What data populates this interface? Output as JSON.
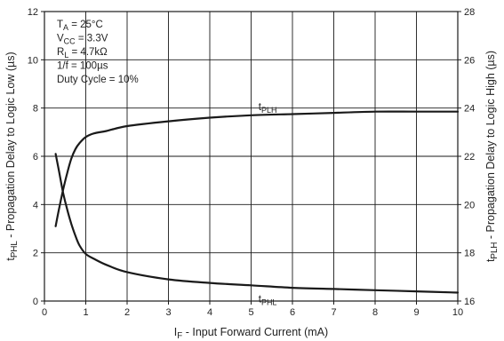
{
  "chart_data": {
    "type": "line",
    "xlabel": {
      "main": "I",
      "sub": "F",
      "rest": " - Input Forward Current (mA)"
    },
    "ylabel_left": {
      "main": "t",
      "sub": "PHL",
      "rest": " - Propagation Delay to Logic Low (µs)"
    },
    "ylabel_right": {
      "main": "t",
      "sub": "PLH",
      "rest": " - Propagation Delay to Logic High (µs)"
    },
    "xlim": [
      0,
      10
    ],
    "ylim_left": [
      0,
      12
    ],
    "ylim_right": [
      16,
      28
    ],
    "x_ticks": [
      "0",
      "1",
      "2",
      "3",
      "4",
      "5",
      "6",
      "7",
      "8",
      "9",
      "10"
    ],
    "y_ticks_left": [
      "0",
      "2",
      "4",
      "6",
      "8",
      "10",
      "12"
    ],
    "y_ticks_right": [
      "16",
      "18",
      "20",
      "22",
      "24",
      "26",
      "28"
    ],
    "grid": true,
    "conditions": [
      {
        "main": "T",
        "sub": "A",
        "rest": " = 25°C"
      },
      {
        "main": "V",
        "sub": "CC",
        "rest": " = 3.3V"
      },
      {
        "main": "R",
        "sub": "L",
        "rest": " = 4.7kΩ"
      },
      {
        "main": "1/f = 100µs",
        "sub": "",
        "rest": ""
      },
      {
        "main": "Duty Cycle = 10%",
        "sub": "",
        "rest": ""
      }
    ],
    "series": [
      {
        "name": {
          "main": "t",
          "sub": "PLH"
        },
        "axis": "right",
        "x": [
          0.27,
          0.35,
          0.45,
          0.55,
          0.65,
          0.75,
          0.85,
          1.0,
          1.2,
          1.5,
          2.0,
          3.0,
          4.0,
          5.0,
          6.0,
          7.0,
          8.0,
          9.0,
          10.0
        ],
        "y": [
          19.1,
          19.8,
          20.6,
          21.3,
          21.9,
          22.3,
          22.55,
          22.8,
          22.95,
          23.05,
          23.25,
          23.45,
          23.6,
          23.7,
          23.75,
          23.8,
          23.85,
          23.85,
          23.85
        ]
      },
      {
        "name": {
          "main": "t",
          "sub": "PHL"
        },
        "axis": "left",
        "x": [
          0.27,
          0.35,
          0.45,
          0.55,
          0.65,
          0.75,
          0.85,
          1.0,
          1.2,
          1.5,
          2.0,
          3.0,
          4.0,
          5.0,
          6.0,
          7.0,
          8.0,
          9.0,
          10.0
        ],
        "y": [
          6.1,
          5.4,
          4.5,
          3.8,
          3.2,
          2.7,
          2.3,
          1.95,
          1.75,
          1.5,
          1.2,
          0.9,
          0.75,
          0.65,
          0.55,
          0.5,
          0.45,
          0.4,
          0.35
        ]
      }
    ]
  }
}
